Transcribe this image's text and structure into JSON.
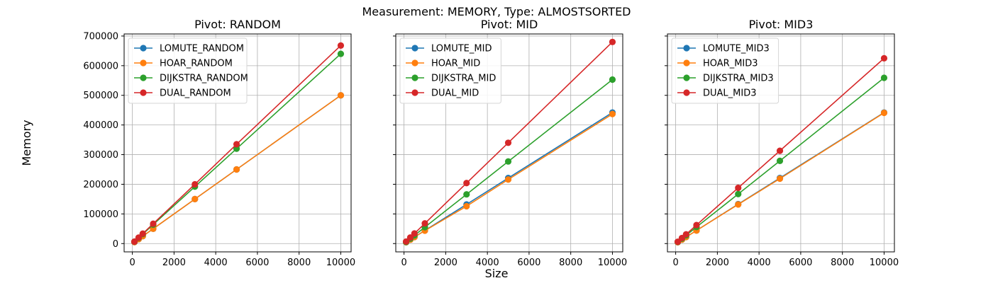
{
  "figure": {
    "suptitle": "Measurement: MEMORY, Type: ALMOSTSORTED",
    "xlabel": "Size",
    "ylabel": "Memory"
  },
  "chart_data": [
    {
      "type": "line",
      "title": "Pivot: RANDOM",
      "x": [
        100,
        300,
        500,
        1000,
        3000,
        5000,
        10000
      ],
      "xticks": [
        0,
        2000,
        4000,
        6000,
        8000,
        10000
      ],
      "yticks": [
        0,
        100000,
        200000,
        300000,
        400000,
        500000,
        600000,
        700000
      ],
      "xlim": [
        -395,
        10495
      ],
      "ylim": [
        -28000,
        707000
      ],
      "grid": true,
      "legend_position": "upper-left",
      "series": [
        {
          "name": "LOMUTE_RANDOM",
          "color": "#1f77b4",
          "values": [
            5000,
            15000,
            25000,
            50000,
            150000,
            250000,
            500000
          ]
        },
        {
          "name": "HOAR_RANDOM",
          "color": "#ff7f0e",
          "values": [
            5000,
            15000,
            25000,
            50000,
            150000,
            250000,
            500000
          ]
        },
        {
          "name": "DIJKSTRA_RANDOM",
          "color": "#2ca02c",
          "values": [
            6400,
            19200,
            32000,
            64000,
            192000,
            320000,
            640000
          ]
        },
        {
          "name": "DUAL_RANDOM",
          "color": "#d62728",
          "values": [
            6700,
            20100,
            33500,
            67000,
            200000,
            335000,
            668000
          ]
        }
      ]
    },
    {
      "type": "line",
      "title": "Pivot: MID",
      "x": [
        100,
        300,
        500,
        1000,
        3000,
        5000,
        10000
      ],
      "xticks": [
        0,
        2000,
        4000,
        6000,
        8000,
        10000
      ],
      "yticks": [
        0,
        100000,
        200000,
        300000,
        400000,
        500000,
        600000,
        700000
      ],
      "xlim": [
        -395,
        10495
      ],
      "ylim": [
        -28000,
        707000
      ],
      "grid": true,
      "legend_position": "upper-left",
      "series": [
        {
          "name": "LOMUTE_MID",
          "color": "#1f77b4",
          "values": [
            4400,
            13300,
            22100,
            44200,
            132000,
            221000,
            442000
          ]
        },
        {
          "name": "HOAR_MID",
          "color": "#ff7f0e",
          "values": [
            4400,
            13000,
            21800,
            43600,
            126000,
            216000,
            437000
          ]
        },
        {
          "name": "DIJKSTRA_MID",
          "color": "#2ca02c",
          "values": [
            5500,
            16600,
            27700,
            55300,
            166000,
            277000,
            553000
          ]
        },
        {
          "name": "DUAL_MID",
          "color": "#d62728",
          "values": [
            6800,
            20400,
            34000,
            68000,
            204000,
            340000,
            680000
          ]
        }
      ]
    },
    {
      "type": "line",
      "title": "Pivot: MID3",
      "x": [
        100,
        300,
        500,
        1000,
        3000,
        5000,
        10000
      ],
      "xticks": [
        0,
        2000,
        4000,
        6000,
        8000,
        10000
      ],
      "yticks": [
        0,
        100000,
        200000,
        300000,
        400000,
        500000,
        600000,
        700000
      ],
      "xlim": [
        -395,
        10495
      ],
      "ylim": [
        -28000,
        707000
      ],
      "grid": true,
      "legend_position": "upper-left",
      "series": [
        {
          "name": "LOMUTE_MID3",
          "color": "#1f77b4",
          "values": [
            4400,
            13300,
            22100,
            44200,
            133000,
            221000,
            442000
          ]
        },
        {
          "name": "HOAR_MID3",
          "color": "#ff7f0e",
          "values": [
            4400,
            13200,
            22000,
            44000,
            132000,
            219000,
            441000
          ]
        },
        {
          "name": "DIJKSTRA_MID3",
          "color": "#2ca02c",
          "values": [
            5600,
            16700,
            27900,
            55800,
            167000,
            279000,
            559000
          ]
        },
        {
          "name": "DUAL_MID3",
          "color": "#d62728",
          "values": [
            6200,
            18700,
            31200,
            62500,
            188000,
            313000,
            625000
          ]
        }
      ]
    }
  ]
}
